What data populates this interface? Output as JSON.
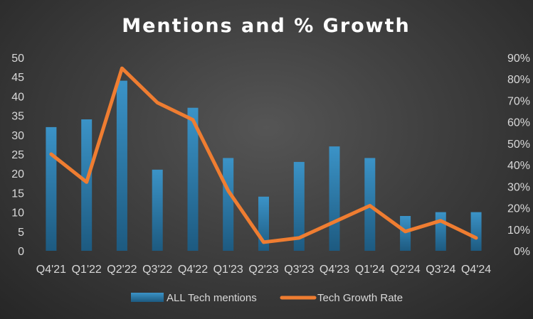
{
  "chart_data": {
    "type": "bar+line",
    "title": "Mentions and % Growth",
    "categories": [
      "Q4'21",
      "Q1'22",
      "Q2'22",
      "Q3'22",
      "Q4'22",
      "Q1'23",
      "Q2'23",
      "Q3'23",
      "Q4'23",
      "Q1'24",
      "Q2'24",
      "Q3'24",
      "Q4'24"
    ],
    "series": [
      {
        "name": "ALL Tech mentions",
        "type": "bar",
        "axis": "left",
        "color": "#2e7fb0",
        "values": [
          32,
          34,
          44,
          21,
          37,
          24,
          14,
          23,
          27,
          24,
          9,
          10,
          10
        ]
      },
      {
        "name": "Tech Growth Rate",
        "type": "line",
        "axis": "right",
        "color": "#ef7d31",
        "values": [
          0.45,
          0.32,
          0.85,
          0.69,
          0.61,
          0.28,
          0.04,
          0.06,
          0.135,
          0.21,
          0.09,
          0.14,
          0.06
        ]
      }
    ],
    "y_left": {
      "min": 0,
      "max": 50,
      "step": 5,
      "ticks": [
        "0",
        "5",
        "10",
        "15",
        "20",
        "25",
        "30",
        "35",
        "40",
        "45",
        "50"
      ]
    },
    "y_right": {
      "min": 0,
      "max": 0.9,
      "step": 0.1,
      "ticks": [
        "0%",
        "10%",
        "20%",
        "30%",
        "40%",
        "50%",
        "60%",
        "70%",
        "80%",
        "90%"
      ]
    },
    "grid": false,
    "legend_position": "bottom"
  }
}
